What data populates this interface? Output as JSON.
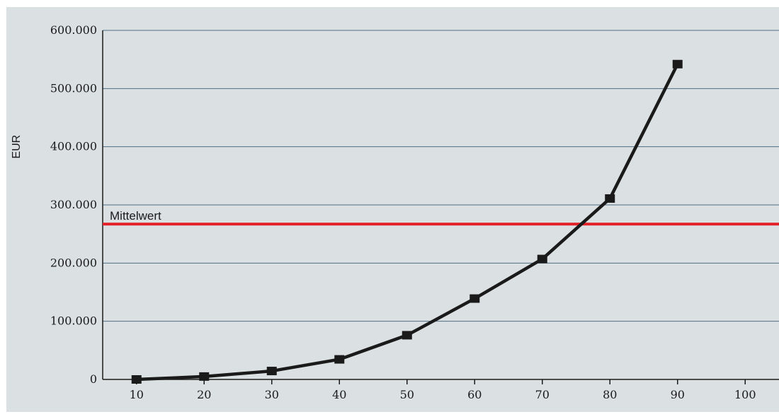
{
  "chart_data": {
    "type": "line",
    "ylabel": "EUR",
    "x": [
      10,
      20,
      30,
      40,
      50,
      60,
      70,
      80,
      90
    ],
    "series": [
      {
        "values": [
          0,
          5000,
          14500,
          34500,
          76000,
          139000,
          207000,
          311000,
          542000
        ]
      }
    ],
    "xticks": [
      "10",
      "20",
      "30",
      "40",
      "50",
      "60",
      "70",
      "80",
      "90",
      "100"
    ],
    "yticks": [
      "0",
      "100.000",
      "200.000",
      "300.000",
      "400.000",
      "500.000",
      "600.000"
    ],
    "xlim": [
      5,
      105
    ],
    "ylim": [
      0,
      600000
    ],
    "grid": "horizontal",
    "reference_line": {
      "label": "Mittelwert",
      "value": 267000,
      "color": "#e3232a"
    },
    "colors": {
      "series": "#1a1a1a",
      "background": "#dbe0e3",
      "grid": "#4f6e84"
    }
  }
}
